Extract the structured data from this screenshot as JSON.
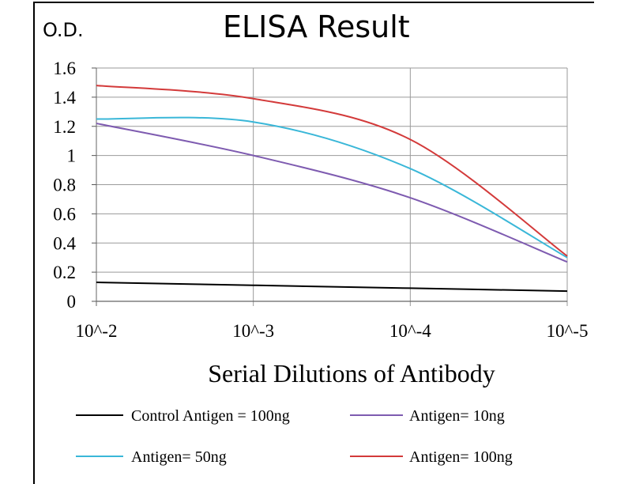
{
  "chart_data": {
    "type": "line",
    "title": "ELISA Result",
    "ylabel": "O.D.",
    "xlabel": "Serial Dilutions  of Antibody",
    "categories": [
      "10^-2",
      "10^-3",
      "10^-4",
      "10^-5"
    ],
    "ylim": [
      0,
      1.6
    ],
    "yticks": [
      "0",
      "0.2",
      "0.4",
      "0.6",
      "0.8",
      "1",
      "1.2",
      "1.4",
      "1.6"
    ],
    "grid": true,
    "legend_position": "bottom",
    "series": [
      {
        "name": "Control Antigen = 100ng",
        "color": "#000000",
        "values": [
          0.13,
          0.11,
          0.09,
          0.07
        ]
      },
      {
        "name": "Antigen= 10ng",
        "color": "#7e5bb0",
        "values": [
          1.22,
          1.0,
          0.71,
          0.27
        ]
      },
      {
        "name": "Antigen= 50ng",
        "color": "#3ab7d8",
        "values": [
          1.25,
          1.23,
          0.91,
          0.3
        ]
      },
      {
        "name": "Antigen= 100ng",
        "color": "#d33a3a",
        "values": [
          1.48,
          1.39,
          1.11,
          0.31
        ]
      }
    ]
  }
}
